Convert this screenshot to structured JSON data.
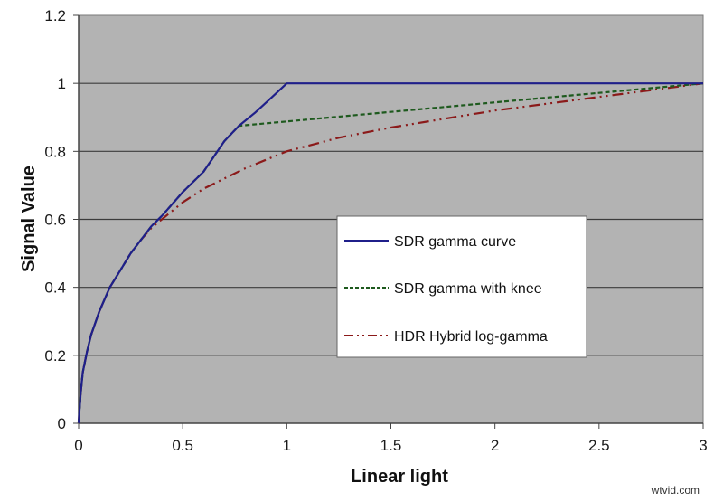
{
  "chart_data": {
    "type": "line",
    "title": "",
    "xlabel": "Linear light",
    "ylabel": "Signal Value",
    "xlim": [
      0,
      3
    ],
    "ylim": [
      0,
      1.2
    ],
    "x_ticks": [
      0,
      0.5,
      1,
      1.5,
      2,
      2.5,
      3
    ],
    "x_tick_labels": [
      "0",
      "0.5",
      "1",
      "1.5",
      "2",
      "2.5",
      "3"
    ],
    "y_ticks": [
      0,
      0.2,
      0.4,
      0.6,
      0.8,
      1,
      1.2
    ],
    "y_tick_labels": [
      "0",
      "0.2",
      "0.4",
      "0.6",
      "0.8",
      "1",
      "1.2"
    ],
    "grid": "horizontal",
    "plot_background": "#b3b3b3",
    "legend_position": "inside-center-right",
    "series": [
      {
        "name": "SDR gamma curve",
        "color": "#1f1f8a",
        "style": "solid",
        "x": [
          0,
          0.01,
          0.02,
          0.04,
          0.06,
          0.1,
          0.15,
          0.2,
          0.25,
          0.3,
          0.35,
          0.4,
          0.5,
          0.6,
          0.7,
          0.77,
          0.85,
          0.93,
          1.0,
          1.5,
          2.0,
          2.5,
          3.0
        ],
        "y": [
          0,
          0.09,
          0.15,
          0.21,
          0.26,
          0.33,
          0.4,
          0.45,
          0.5,
          0.54,
          0.58,
          0.61,
          0.68,
          0.74,
          0.83,
          0.875,
          0.915,
          0.96,
          1.0,
          1.0,
          1.0,
          1.0,
          1.0
        ]
      },
      {
        "name": "SDR gamma with knee",
        "color": "#1e5a1e",
        "style": "dashed",
        "x": [
          0,
          0.01,
          0.02,
          0.04,
          0.06,
          0.1,
          0.15,
          0.2,
          0.25,
          0.3,
          0.35,
          0.4,
          0.5,
          0.6,
          0.7,
          0.77,
          1.0,
          1.5,
          2.0,
          2.5,
          3.0
        ],
        "y": [
          0,
          0.09,
          0.15,
          0.21,
          0.26,
          0.33,
          0.4,
          0.45,
          0.5,
          0.54,
          0.58,
          0.61,
          0.68,
          0.74,
          0.83,
          0.875,
          0.888,
          0.916,
          0.944,
          0.972,
          1.0
        ]
      },
      {
        "name": "HDR Hybrid log-gamma",
        "color": "#8b1a1a",
        "style": "dash-dot-dot",
        "x": [
          0,
          0.01,
          0.02,
          0.04,
          0.06,
          0.1,
          0.15,
          0.2,
          0.25,
          0.3,
          0.35,
          0.4,
          0.5,
          0.6,
          0.7,
          0.8,
          1.0,
          1.25,
          1.5,
          1.75,
          2.0,
          2.5,
          3.0
        ],
        "y": [
          0,
          0.09,
          0.15,
          0.21,
          0.26,
          0.33,
          0.4,
          0.45,
          0.5,
          0.54,
          0.575,
          0.6,
          0.65,
          0.69,
          0.72,
          0.75,
          0.8,
          0.84,
          0.87,
          0.895,
          0.92,
          0.96,
          1.0
        ]
      }
    ]
  },
  "legend": {
    "items": [
      {
        "label": "SDR gamma curve"
      },
      {
        "label": "SDR gamma with knee"
      },
      {
        "label": "HDR Hybrid log-gamma"
      }
    ]
  },
  "watermark": "wtvid.com"
}
